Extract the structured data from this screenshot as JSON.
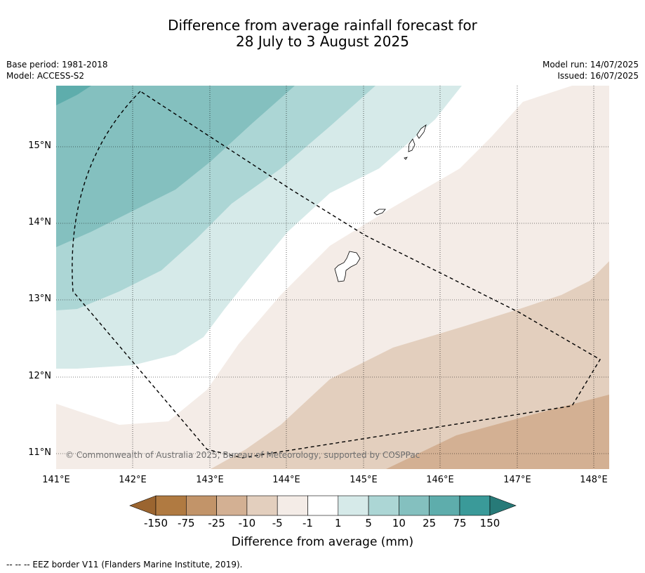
{
  "title_line1": "Difference from average rainfall forecast for",
  "title_line2": "28 July to 3 August 2025",
  "meta_left": {
    "base_period": "Base period: 1981-2018",
    "model": "Model: ACCESS-S2"
  },
  "meta_right": {
    "model_run": "Model run: 14/07/2025",
    "issued": "Issued: 16/07/2025"
  },
  "map": {
    "lat_labels": [
      "15°N",
      "14°N",
      "13°N",
      "12°N",
      "11°N"
    ],
    "lon_labels": [
      "141°E",
      "142°E",
      "143°E",
      "144°E",
      "145°E",
      "146°E",
      "147°E",
      "148°E"
    ],
    "copyright": "© Commonwealth of Australia 2025, Bureau of Meteorology, supported by COSPPac",
    "eez_line_color": "#000000"
  },
  "colorbar": {
    "title": "Difference from average (mm)",
    "labels": [
      "-150",
      "-75",
      "-25",
      "-10",
      "-5",
      "-1",
      "1",
      "5",
      "10",
      "25",
      "75",
      "150"
    ],
    "colors": [
      "#9b6530",
      "#b07a41",
      "#c29469",
      "#d3b093",
      "#e3cfbe",
      "#f4ece7",
      "#ffffff",
      "#d6eae9",
      "#acd6d5",
      "#84c0bf",
      "#5eadac",
      "#3a9a99",
      "#277a78"
    ]
  },
  "footnote": "--  --  -- EEZ border V11 (Flanders Marine Institute, 2019)."
}
